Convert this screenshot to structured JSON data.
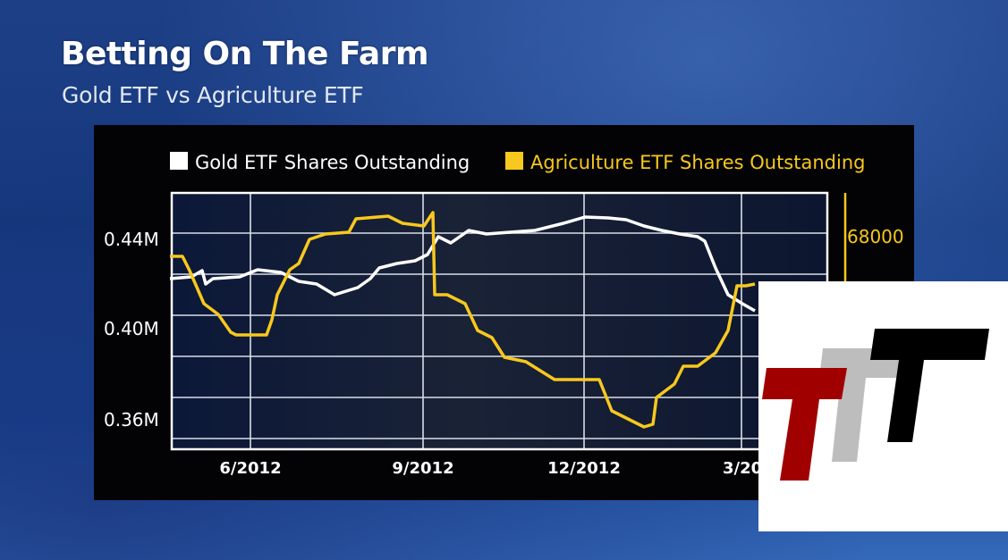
{
  "header": {
    "title": "Betting On The Farm",
    "subtitle": "Gold ETF vs Agriculture ETF"
  },
  "chart_data": {
    "type": "line",
    "grid": true,
    "legend_placement": "top",
    "x_tick_labels": [
      "6/2012",
      "9/2012",
      "12/2012",
      "3/20"
    ],
    "y_left_tick_labels": [
      "0.44M",
      "0.40M",
      "0.36M"
    ],
    "y_right_tick_labels": [
      "68000"
    ],
    "series": [
      {
        "name": "Gold ETF Shares Outstanding",
        "color": "#ffffff",
        "axis": "left",
        "unit": "M shares",
        "points": [
          [
            "2012-04-16",
            0.42
          ],
          [
            "2012-04-28",
            0.4208
          ],
          [
            "2012-05-04",
            0.4236
          ],
          [
            "2012-05-06",
            0.4176
          ],
          [
            "2012-05-10",
            0.42
          ],
          [
            "2012-05-25",
            0.4208
          ],
          [
            "2012-06-05",
            0.424
          ],
          [
            "2012-06-18",
            0.4228
          ],
          [
            "2012-06-28",
            0.4188
          ],
          [
            "2012-07-08",
            0.4176
          ],
          [
            "2012-07-18",
            0.4128
          ],
          [
            "2012-08-01",
            0.416
          ],
          [
            "2012-08-08",
            0.42
          ],
          [
            "2012-08-13",
            0.4248
          ],
          [
            "2012-08-23",
            0.4268
          ],
          [
            "2012-09-03",
            0.428
          ],
          [
            "2012-09-10",
            0.4308
          ],
          [
            "2012-09-16",
            0.4388
          ],
          [
            "2012-09-23",
            0.436
          ],
          [
            "2012-10-03",
            0.4416
          ],
          [
            "2012-10-13",
            0.44
          ],
          [
            "2012-10-26",
            0.4408
          ],
          [
            "2012-11-10",
            0.4416
          ],
          [
            "2012-11-26",
            0.4448
          ],
          [
            "2012-12-08",
            0.4476
          ],
          [
            "2012-12-21",
            0.4472
          ],
          [
            "2013-01-01",
            0.4464
          ],
          [
            "2013-01-11",
            0.4436
          ],
          [
            "2013-01-21",
            0.4416
          ],
          [
            "2013-02-01",
            0.44
          ],
          [
            "2013-02-11",
            0.4388
          ],
          [
            "2013-02-15",
            0.4368
          ],
          [
            "2013-02-21",
            0.4248
          ],
          [
            "2013-02-28",
            0.4128
          ],
          [
            "2013-03-06",
            0.4088
          ],
          [
            "2013-03-13",
            0.4056
          ]
        ]
      },
      {
        "name": "Agriculture ETF Shares Outstanding",
        "color": "#f7c81e",
        "axis": "right",
        "unit": "shares",
        "points": [
          [
            "2012-04-16",
            67000
          ],
          [
            "2012-04-23",
            67000
          ],
          [
            "2012-04-27",
            66360
          ],
          [
            "2012-05-05",
            64880
          ],
          [
            "2012-05-13",
            64400
          ],
          [
            "2012-05-20",
            63600
          ],
          [
            "2012-05-23",
            63480
          ],
          [
            "2012-06-10",
            63480
          ],
          [
            "2012-06-13",
            64160
          ],
          [
            "2012-06-16",
            65280
          ],
          [
            "2012-06-23",
            66400
          ],
          [
            "2012-06-28",
            66680
          ],
          [
            "2012-07-04",
            67760
          ],
          [
            "2012-07-13",
            68000
          ],
          [
            "2012-07-26",
            68080
          ],
          [
            "2012-07-30",
            68680
          ],
          [
            "2012-08-18",
            68800
          ],
          [
            "2012-08-26",
            68480
          ],
          [
            "2012-09-08",
            68360
          ],
          [
            "2012-09-13",
            68960
          ],
          [
            "2012-09-14",
            65280
          ],
          [
            "2012-09-21",
            65280
          ],
          [
            "2012-10-01",
            64880
          ],
          [
            "2012-10-08",
            63680
          ],
          [
            "2012-10-16",
            63360
          ],
          [
            "2012-10-23",
            62480
          ],
          [
            "2012-11-05",
            62280
          ],
          [
            "2012-11-21",
            61480
          ],
          [
            "2012-12-06",
            61480
          ],
          [
            "2012-12-16",
            61480
          ],
          [
            "2012-12-23",
            60080
          ],
          [
            "2013-01-01",
            59760
          ],
          [
            "2013-01-11",
            59360
          ],
          [
            "2013-01-16",
            59480
          ],
          [
            "2013-01-18",
            60680
          ],
          [
            "2013-01-28",
            61280
          ],
          [
            "2013-02-03",
            62080
          ],
          [
            "2013-02-11",
            62080
          ],
          [
            "2013-02-21",
            62680
          ],
          [
            "2013-02-28",
            63680
          ],
          [
            "2013-03-01",
            64880
          ],
          [
            "2013-03-03",
            65680
          ],
          [
            "2013-03-08",
            65680
          ],
          [
            "2013-03-13",
            65760
          ]
        ]
      }
    ]
  },
  "logo": {
    "name": "TTT logo",
    "colors": [
      "#a00000",
      "#bdbdbd",
      "#000000"
    ]
  }
}
